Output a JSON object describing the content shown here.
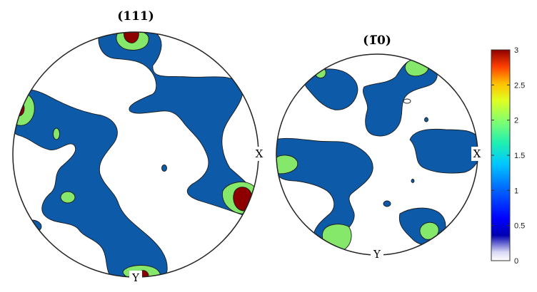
{
  "chart_data": {
    "type": "heatmap",
    "subtype": "pole-figure",
    "panels": [
      {
        "title": "(111)",
        "axis_labels": {
          "x": "X",
          "y": "Y"
        }
      },
      {
        "title": "(1̅0)",
        "axis_labels": {
          "x": "X",
          "y": "Y"
        }
      }
    ],
    "contour_levels": [
      1,
      2,
      3
    ],
    "level_colors": {
      "1": "#0d5aa8",
      "2": "#86e86a",
      "3": "#8e0000"
    },
    "colorbar": {
      "min": 0,
      "max": 3,
      "ticks": [
        "0",
        "0.5",
        "1",
        "1.5",
        "2",
        "2.5",
        "3"
      ],
      "colormap": "jet-white"
    }
  }
}
